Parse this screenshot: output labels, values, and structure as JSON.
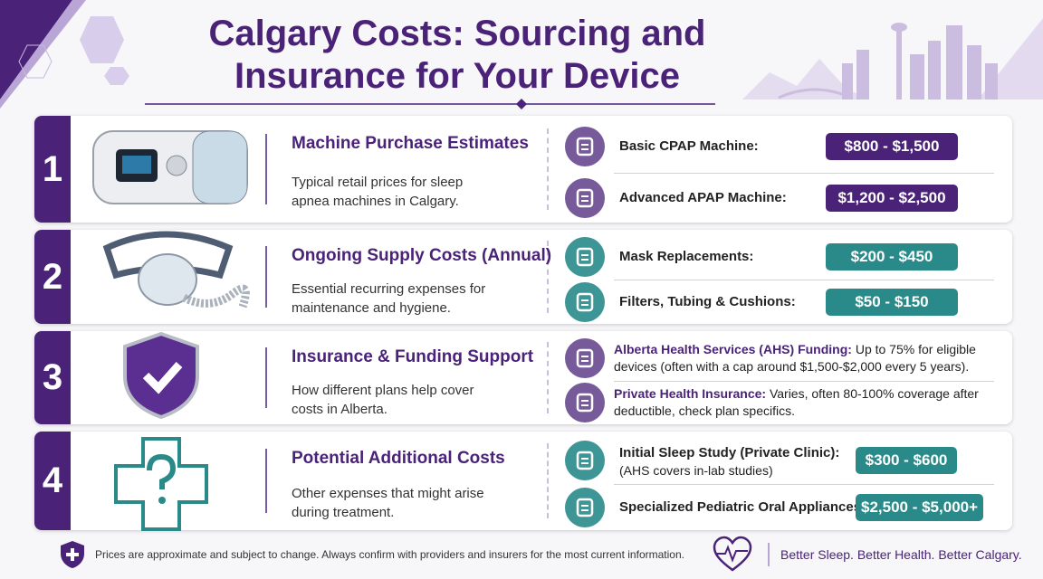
{
  "header": {
    "title": "Calgary Costs: Sourcing and Insurance for Your Device"
  },
  "sections": [
    {
      "number": "1",
      "title": "Machine Purchase Estimates",
      "description": "Typical retail prices for sleep apnea machines in Calgary.",
      "items": [
        {
          "label": "Basic CPAP Machine:",
          "price": "$800 - $1,500"
        },
        {
          "label": "Advanced APAP Machine:",
          "price": "$1,200 - $2,500"
        }
      ]
    },
    {
      "number": "2",
      "title": "Ongoing Supply Costs (Annual)",
      "description": "Essential recurring expenses for maintenance and hygiene.",
      "items": [
        {
          "label": "Mask Replacements:",
          "price": "$200 - $450"
        },
        {
          "label": "Filters, Tubing & Cushions:",
          "price": "$50 - $150"
        }
      ]
    },
    {
      "number": "3",
      "title": "Insurance & Funding Support",
      "description": "How different plans help cover costs in Alberta.",
      "items": [
        {
          "label": "Alberta Health Services (AHS) Funding:",
          "text": "Up to 75% for eligible devices (often with a cap around $1,500-$2,000 every 5 years)."
        },
        {
          "label": "Private Health Insurance:",
          "text": "Varies, often 80-100% coverage after deductible, check plan specifics."
        }
      ]
    },
    {
      "number": "4",
      "title": "Potential Additional Costs",
      "description": "Other expenses that might arise during treatment.",
      "items": [
        {
          "label": "Initial Sleep Study (Private Clinic):",
          "note": "(AHS covers in-lab studies)",
          "price": "$300 - $600"
        },
        {
          "label": "Specialized Pediatric Oral Appliances:",
          "price": "$2,500 - $5,000+"
        }
      ]
    }
  ],
  "footer": {
    "disclaimer": "Prices are approximate and subject to change. Always confirm with providers and insurers for the most current information.",
    "tagline": "Better Sleep. Better Health. Better Calgary."
  }
}
